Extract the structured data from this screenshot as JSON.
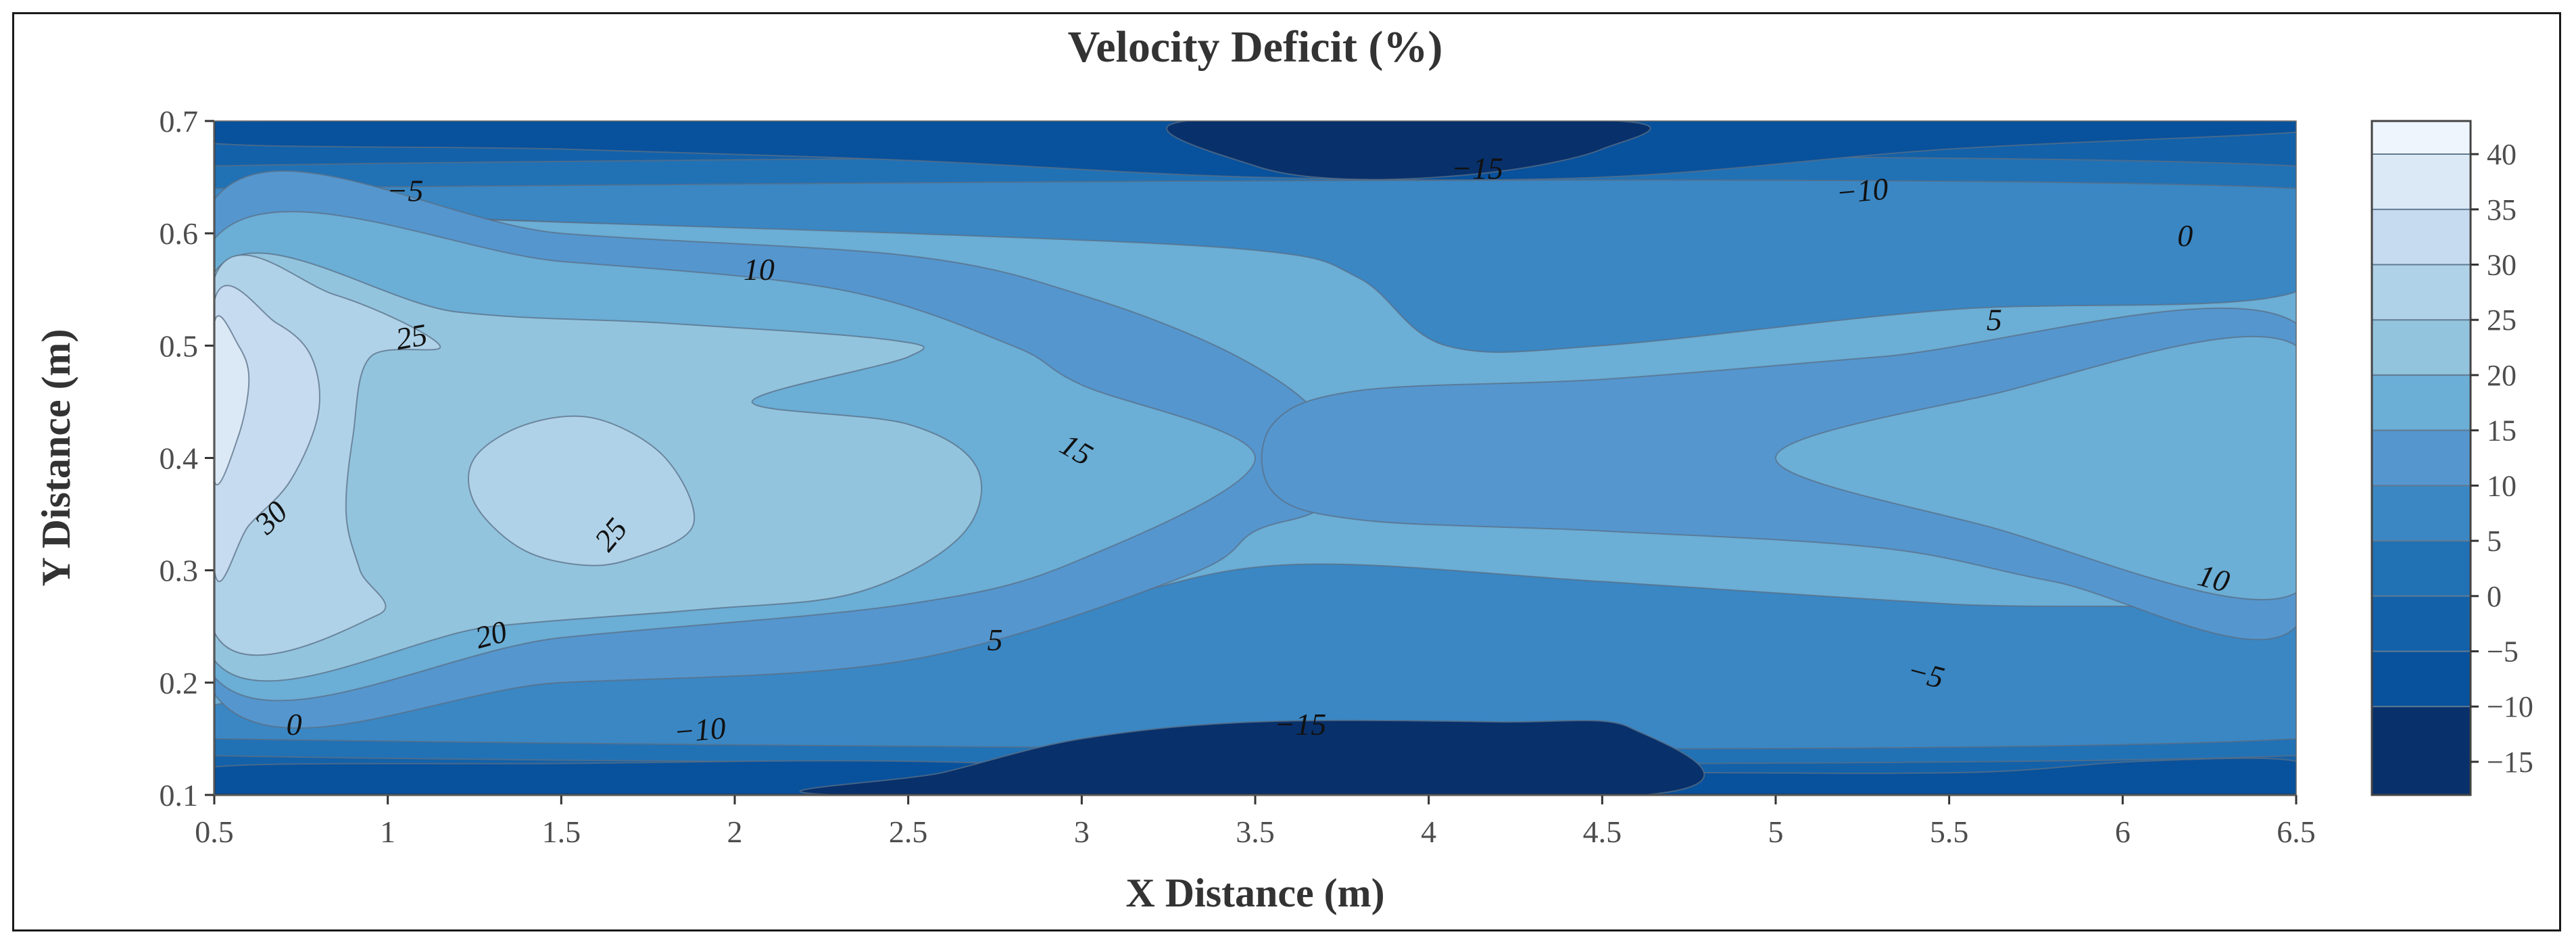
{
  "chart_data": {
    "type": "contour",
    "title": "Velocity Deficit (%)",
    "xlabel": "X Distance (m)",
    "ylabel": "Y Distance (m)",
    "xlim": [
      0.5,
      6.5
    ],
    "ylim": [
      0.1,
      0.7
    ],
    "x_ticks": [
      "0.5",
      "1",
      "1.5",
      "2",
      "2.5",
      "3",
      "3.5",
      "4",
      "4.5",
      "5",
      "5.5",
      "6",
      "6.5"
    ],
    "y_ticks": [
      "0.1",
      "0.2",
      "0.3",
      "0.4",
      "0.5",
      "0.6",
      "0.7"
    ],
    "colorbar": {
      "range": [
        -18,
        43
      ],
      "ticks": [
        "−15",
        "−10",
        "−5",
        "0",
        "5",
        "10",
        "15",
        "20",
        "25",
        "30",
        "35",
        "40"
      ],
      "levels": [
        -15,
        -10,
        -5,
        0,
        5,
        10,
        15,
        20,
        25,
        30,
        35,
        40
      ],
      "colors": [
        "#08306b",
        "#08519c",
        "#1361a9",
        "#2171b5",
        "#3a87c4",
        "#5596ce",
        "#6baed6",
        "#93c4de",
        "#b0d2e8",
        "#c6dbef",
        "#dbe9f6",
        "#eef5fc"
      ]
    },
    "background_level": 15,
    "regions": [
      {
        "level": -5,
        "polygon": [
          [
            0.5,
            0.1
          ],
          [
            6.5,
            0.1
          ],
          [
            6.5,
            0.155
          ],
          [
            5.8,
            0.175
          ],
          [
            4.5,
            0.195
          ],
          [
            3.0,
            0.19
          ],
          [
            2.0,
            0.175
          ],
          [
            1.0,
            0.16
          ],
          [
            0.5,
            0.15
          ]
        ]
      },
      {
        "level": -5,
        "polygon": [
          [
            0.5,
            0.7
          ],
          [
            6.5,
            0.7
          ],
          [
            6.5,
            0.62
          ],
          [
            5.5,
            0.605
          ],
          [
            4.5,
            0.59
          ],
          [
            3.5,
            0.6
          ],
          [
            2.5,
            0.62
          ],
          [
            1.5,
            0.64
          ],
          [
            0.5,
            0.66
          ]
        ]
      },
      {
        "level": 0,
        "polygon": [
          [
            0.5,
            0.135
          ],
          [
            6.5,
            0.135
          ],
          [
            6.5,
            0.21
          ],
          [
            5.6,
            0.232
          ],
          [
            4.5,
            0.245
          ],
          [
            3.5,
            0.245
          ],
          [
            2.5,
            0.21
          ],
          [
            1.5,
            0.19
          ],
          [
            0.5,
            0.175
          ]
        ]
      },
      {
        "level": 0,
        "polygon": [
          [
            0.5,
            0.66
          ],
          [
            6.5,
            0.66
          ],
          [
            6.5,
            0.565
          ],
          [
            5.5,
            0.56
          ],
          [
            4.7,
            0.555
          ],
          [
            4.05,
            0.548
          ],
          [
            3.5,
            0.6
          ],
          [
            2.5,
            0.605
          ],
          [
            1.5,
            0.61
          ],
          [
            0.5,
            0.625
          ]
        ]
      },
      {
        "level": 5,
        "polygon": [
          [
            0.5,
            0.15
          ],
          [
            6.5,
            0.15
          ],
          [
            6.5,
            0.255
          ],
          [
            5.5,
            0.27
          ],
          [
            4.5,
            0.29
          ],
          [
            3.6,
            0.305
          ],
          [
            3.0,
            0.27
          ],
          [
            2.0,
            0.215
          ],
          [
            1.0,
            0.19
          ],
          [
            0.5,
            0.18
          ]
        ]
      },
      {
        "level": 5,
        "polygon": [
          [
            0.5,
            0.64
          ],
          [
            6.5,
            0.64
          ],
          [
            6.5,
            0.548
          ],
          [
            5.5,
            0.532
          ],
          [
            4.5,
            0.5
          ],
          [
            4.05,
            0.5
          ],
          [
            3.8,
            0.56
          ],
          [
            3.5,
            0.585
          ],
          [
            2.5,
            0.6
          ],
          [
            1.5,
            0.61
          ],
          [
            0.5,
            0.625
          ]
        ]
      },
      {
        "level": 10,
        "polygon": [
          [
            0.5,
            0.19
          ],
          [
            1.5,
            0.2
          ],
          [
            2.5,
            0.22
          ],
          [
            3.3,
            0.295
          ],
          [
            3.5,
            0.335
          ],
          [
            3.7,
            0.36
          ],
          [
            3.7,
            0.43
          ],
          [
            3.45,
            0.49
          ],
          [
            3.0,
            0.545
          ],
          [
            2.5,
            0.58
          ],
          [
            1.5,
            0.6
          ],
          [
            0.5,
            0.63
          ]
        ]
      },
      {
        "level": 10,
        "polygon": [
          [
            6.5,
            0.25
          ],
          [
            5.8,
            0.29
          ],
          [
            5.3,
            0.32
          ],
          [
            4.5,
            0.335
          ],
          [
            3.8,
            0.345
          ],
          [
            3.55,
            0.37
          ],
          [
            3.55,
            0.43
          ],
          [
            3.8,
            0.46
          ],
          [
            4.5,
            0.47
          ],
          [
            5.3,
            0.49
          ],
          [
            6.5,
            0.52
          ]
        ]
      },
      {
        "level": 15,
        "polygon": [
          [
            0.5,
            0.205
          ],
          [
            1.5,
            0.24
          ],
          [
            2.5,
            0.27
          ],
          [
            3.0,
            0.31
          ],
          [
            3.5,
            0.4
          ],
          [
            3.0,
            0.465
          ],
          [
            2.8,
            0.5
          ],
          [
            2.3,
            0.55
          ],
          [
            1.5,
            0.575
          ],
          [
            0.5,
            0.595
          ]
        ]
      },
      {
        "level": 15,
        "polygon": [
          [
            6.5,
            0.28
          ],
          [
            5.6,
            0.34
          ],
          [
            5.0,
            0.4
          ],
          [
            5.6,
            0.455
          ],
          [
            6.5,
            0.5
          ]
        ]
      },
      {
        "level": 20,
        "polygon": [
          [
            0.5,
            0.22
          ],
          [
            1.3,
            0.25
          ],
          [
            1.9,
            0.265
          ],
          [
            2.35,
            0.28
          ],
          [
            2.65,
            0.33
          ],
          [
            2.7,
            0.39
          ],
          [
            2.5,
            0.43
          ],
          [
            2.05,
            0.45
          ],
          [
            2.5,
            0.49
          ],
          [
            2.45,
            0.505
          ],
          [
            1.8,
            0.52
          ],
          [
            1.2,
            0.53
          ],
          [
            0.5,
            0.565
          ]
        ]
      },
      {
        "level": 25,
        "polygon": [
          [
            0.5,
            0.245
          ],
          [
            0.97,
            0.26
          ],
          [
            0.92,
            0.3
          ],
          [
            0.88,
            0.35
          ],
          [
            0.9,
            0.42
          ],
          [
            0.95,
            0.49
          ],
          [
            1.15,
            0.5
          ],
          [
            0.85,
            0.545
          ],
          [
            0.5,
            0.56
          ]
        ]
      },
      {
        "level": 25,
        "polygon": [
          [
            1.38,
            0.32
          ],
          [
            1.55,
            0.305
          ],
          [
            1.7,
            0.31
          ],
          [
            1.88,
            0.34
          ],
          [
            1.8,
            0.4
          ],
          [
            1.6,
            0.435
          ],
          [
            1.4,
            0.43
          ],
          [
            1.25,
            0.4
          ],
          [
            1.25,
            0.36
          ]
        ]
      },
      {
        "level": 30,
        "polygon": [
          [
            0.5,
            0.3
          ],
          [
            0.6,
            0.34
          ],
          [
            0.72,
            0.38
          ],
          [
            0.8,
            0.44
          ],
          [
            0.78,
            0.49
          ],
          [
            0.68,
            0.52
          ],
          [
            0.5,
            0.54
          ]
        ]
      },
      {
        "level": 35,
        "polygon": [
          [
            0.5,
            0.38
          ],
          [
            0.57,
            0.42
          ],
          [
            0.6,
            0.47
          ],
          [
            0.57,
            0.5
          ],
          [
            0.5,
            0.52
          ]
        ]
      },
      {
        "level": -10,
        "polygon": [
          [
            0.5,
            0.1
          ],
          [
            6.5,
            0.1
          ],
          [
            6.5,
            0.13
          ],
          [
            6.05,
            0.13
          ],
          [
            5.55,
            0.12
          ],
          [
            4.6,
            0.12
          ],
          [
            3.5,
            0.12
          ],
          [
            2.5,
            0.13
          ],
          [
            1.5,
            0.128
          ],
          [
            0.5,
            0.125
          ]
        ]
      },
      {
        "level": -10,
        "polygon": [
          [
            0.5,
            0.7
          ],
          [
            6.5,
            0.7
          ],
          [
            6.5,
            0.69
          ],
          [
            5.5,
            0.675
          ],
          [
            4.5,
            0.65
          ],
          [
            3.5,
            0.65
          ],
          [
            2.5,
            0.665
          ],
          [
            1.5,
            0.675
          ],
          [
            0.5,
            0.68
          ]
        ]
      },
      {
        "level": -15,
        "polygon": [
          [
            2.3,
            0.1
          ],
          [
            4.62,
            0.1
          ],
          [
            4.58,
            0.16
          ],
          [
            4.2,
            0.165
          ],
          [
            3.5,
            0.165
          ],
          [
            3.0,
            0.15
          ],
          [
            2.6,
            0.12
          ]
        ]
      },
      {
        "level": -15,
        "polygon": [
          [
            3.3,
            0.7
          ],
          [
            4.55,
            0.7
          ],
          [
            4.5,
            0.675
          ],
          [
            4.2,
            0.655
          ],
          [
            3.8,
            0.648
          ],
          [
            3.5,
            0.66
          ]
        ]
      }
    ],
    "contour_labels": [
      {
        "text": "−5",
        "x": 1.05,
        "y": 0.635,
        "angle": 0
      },
      {
        "text": "10",
        "x": 2.07,
        "y": 0.565,
        "angle": 0
      },
      {
        "text": "25",
        "x": 1.07,
        "y": 0.505,
        "angle": -10
      },
      {
        "text": "30",
        "x": 0.67,
        "y": 0.345,
        "angle": -45
      },
      {
        "text": "25",
        "x": 1.65,
        "y": 0.33,
        "angle": -50
      },
      {
        "text": "20",
        "x": 1.3,
        "y": 0.24,
        "angle": -15
      },
      {
        "text": "0",
        "x": 0.73,
        "y": 0.16,
        "angle": 0
      },
      {
        "text": "−10",
        "x": 1.9,
        "y": 0.155,
        "angle": -5
      },
      {
        "text": "15",
        "x": 2.98,
        "y": 0.405,
        "angle": 30
      },
      {
        "text": "5",
        "x": 2.75,
        "y": 0.235,
        "angle": 0
      },
      {
        "text": "−15",
        "x": 3.63,
        "y": 0.16,
        "angle": 0
      },
      {
        "text": "−15",
        "x": 4.14,
        "y": 0.655,
        "angle": 0
      },
      {
        "text": "−10",
        "x": 5.25,
        "y": 0.635,
        "angle": -5
      },
      {
        "text": "0",
        "x": 6.18,
        "y": 0.595,
        "angle": 0
      },
      {
        "text": "5",
        "x": 5.63,
        "y": 0.52,
        "angle": 0
      },
      {
        "text": "10",
        "x": 6.26,
        "y": 0.29,
        "angle": 15
      },
      {
        "text": "−5",
        "x": 5.43,
        "y": 0.205,
        "angle": 15
      }
    ]
  }
}
